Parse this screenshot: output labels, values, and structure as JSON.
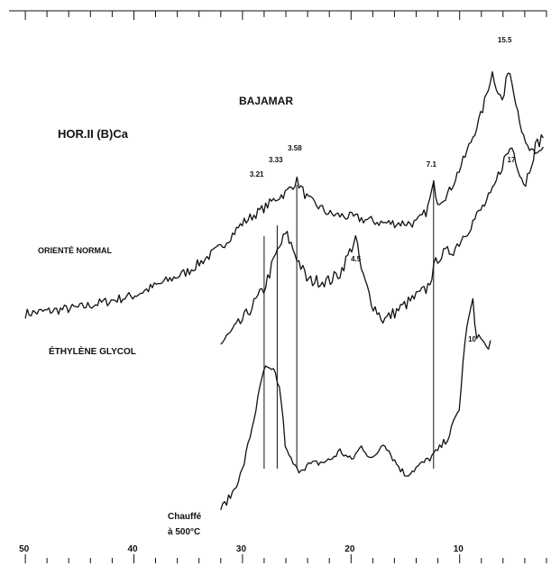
{
  "chart_data": {
    "type": "line",
    "title": "BAJAMAR",
    "subtitle": "HOR.II (B)Ca",
    "xlabel": "",
    "ylabel": "",
    "x_axis": {
      "reversed": true,
      "xlim": [
        51.5,
        2
      ],
      "tick_labels": [
        "50",
        "40",
        "30",
        "20",
        "10"
      ],
      "tick_values": [
        50,
        40,
        30,
        20,
        10
      ]
    },
    "grid": false,
    "series": [
      {
        "name": "ORIENTÉ NORMAL",
        "points": [
          [
            50,
            0
          ],
          [
            45,
            2
          ],
          [
            40,
            6
          ],
          [
            35,
            14
          ],
          [
            32,
            22
          ],
          [
            30,
            30
          ],
          [
            28,
            35
          ],
          [
            27,
            38
          ],
          [
            26.5,
            39
          ],
          [
            26,
            40
          ],
          [
            25,
            44
          ],
          [
            24,
            38
          ],
          [
            22,
            33
          ],
          [
            20,
            32
          ],
          [
            17,
            30
          ],
          [
            14,
            30
          ],
          [
            13,
            34
          ],
          [
            12.4,
            43
          ],
          [
            12,
            37
          ],
          [
            11,
            40
          ],
          [
            9.5,
            52
          ],
          [
            8,
            66
          ],
          [
            7,
            80
          ],
          [
            6.5,
            74
          ],
          [
            6,
            70
          ],
          [
            5.5,
            82
          ],
          [
            5,
            74
          ],
          [
            4,
            56
          ],
          [
            3,
            52
          ],
          [
            2.2,
            56
          ]
        ]
      },
      {
        "name": "ÉTHYLÈNE GLYCOL",
        "points": [
          [
            32,
            0
          ],
          [
            30,
            6
          ],
          [
            28,
            14
          ],
          [
            27,
            22
          ],
          [
            26,
            28
          ],
          [
            25,
            22
          ],
          [
            24,
            16
          ],
          [
            22,
            16
          ],
          [
            21,
            18
          ],
          [
            20,
            24
          ],
          [
            19.6,
            27
          ],
          [
            19,
            18
          ],
          [
            18,
            10
          ],
          [
            17,
            6
          ],
          [
            15,
            10
          ],
          [
            13,
            14
          ],
          [
            12,
            22
          ],
          [
            10.5,
            24
          ],
          [
            10,
            26
          ],
          [
            9,
            30
          ],
          [
            8,
            34
          ],
          [
            7,
            38
          ],
          [
            6,
            46
          ],
          [
            5.2,
            50
          ],
          [
            4.5,
            44
          ],
          [
            4,
            40
          ],
          [
            3,
            50
          ],
          [
            2.2,
            53
          ]
        ]
      },
      {
        "name": "Chauffé à 500°C",
        "points": [
          [
            32,
            0
          ],
          [
            31,
            6
          ],
          [
            30,
            16
          ],
          [
            29,
            36
          ],
          [
            28,
            58
          ],
          [
            27,
            56
          ],
          [
            26.5,
            48
          ],
          [
            26,
            24
          ],
          [
            25,
            16
          ],
          [
            24,
            18
          ],
          [
            22,
            20
          ],
          [
            21,
            24
          ],
          [
            20,
            20
          ],
          [
            19,
            26
          ],
          [
            18,
            20
          ],
          [
            17,
            28
          ],
          [
            16,
            20
          ],
          [
            15,
            14
          ],
          [
            13,
            20
          ],
          [
            12,
            24
          ],
          [
            11,
            30
          ],
          [
            10,
            42
          ],
          [
            9.5,
            70
          ],
          [
            9,
            82
          ],
          [
            8.8,
            86
          ],
          [
            8.5,
            72
          ],
          [
            8,
            70
          ],
          [
            7.5,
            66
          ],
          [
            7,
            70
          ]
        ]
      }
    ],
    "peak_labels": [
      {
        "text": "15.5",
        "x": 5.5,
        "series": "ORIENTÉ NORMAL"
      },
      {
        "text": "7.1",
        "x": 12.4,
        "series": "ORIENTÉ NORMAL"
      },
      {
        "text": "3.58",
        "x": 25.0,
        "series": "ORIENTÉ NORMAL"
      },
      {
        "text": "3.33",
        "x": 26.5,
        "series": "ORIENTÉ NORMAL"
      },
      {
        "text": "3.21",
        "x": 28.0,
        "series": "ORIENTÉ NORMAL"
      },
      {
        "text": "17",
        "x": 5.2,
        "series": "ÉTHYLÈNE GLYCOL"
      },
      {
        "text": "4.5",
        "x": 19.6,
        "series": "ÉTHYLÈNE GLYCOL"
      },
      {
        "text": "10",
        "x": 8.8,
        "series": "Chauffé à 500°C"
      }
    ],
    "guide_lines_x": [
      28.0,
      26.8,
      25.0,
      12.4
    ]
  },
  "labels": {
    "title": "BAJAMAR",
    "sample": "HOR.II (B)Ca",
    "series1": "ORIENTÉ NORMAL",
    "series2": "ÉTHYLÈNE GLYCOL",
    "series3_line1": "Chauffé",
    "series3_line2": "à 500°C"
  }
}
